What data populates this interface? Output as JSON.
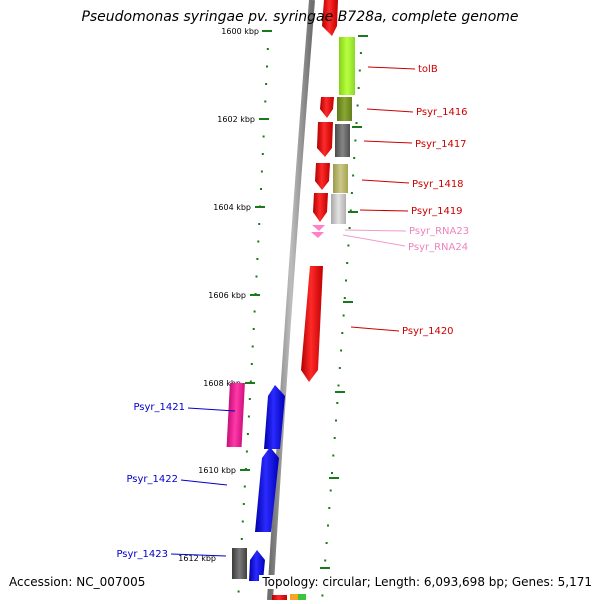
{
  "title": "Pseudomonas syringae pv. syringae B728a, complete genome",
  "footer": {
    "accession": "Accession: NC_007005",
    "info": "Topology: circular; Length: 6,093,698 bp; Genes: 5,171"
  },
  "colors": {
    "forward_gene": "#ff0000",
    "reverse_gene": "#0000ff",
    "rna": "#ff69b4",
    "backbone": "#8c8c8c",
    "tick": "#1a7a1a"
  },
  "scale_labels": [
    "1600 kbp",
    "1602 kbp",
    "1604 kbp",
    "1606 kbp",
    "1608 kbp",
    "1610 kbp",
    "1612 kbp"
  ],
  "gene_labels_right": [
    {
      "text": "tolB",
      "color": "#cc0000"
    },
    {
      "text": "Psyr_1416",
      "color": "#cc0000"
    },
    {
      "text": "Psyr_1417",
      "color": "#cc0000"
    },
    {
      "text": "Psyr_1418",
      "color": "#cc0000"
    },
    {
      "text": "Psyr_1419",
      "color": "#cc0000"
    },
    {
      "text": "Psyr_RNA23",
      "color": "#ee82c0"
    },
    {
      "text": "Psyr_RNA24",
      "color": "#ee82c0"
    },
    {
      "text": "Psyr_1420",
      "color": "#cc0000"
    }
  ],
  "gene_labels_left": [
    {
      "text": "Psyr_1421",
      "color": "#0000cc"
    },
    {
      "text": "Psyr_1422",
      "color": "#0000cc"
    },
    {
      "text": "Psyr_1423",
      "color": "#0000cc"
    }
  ]
}
